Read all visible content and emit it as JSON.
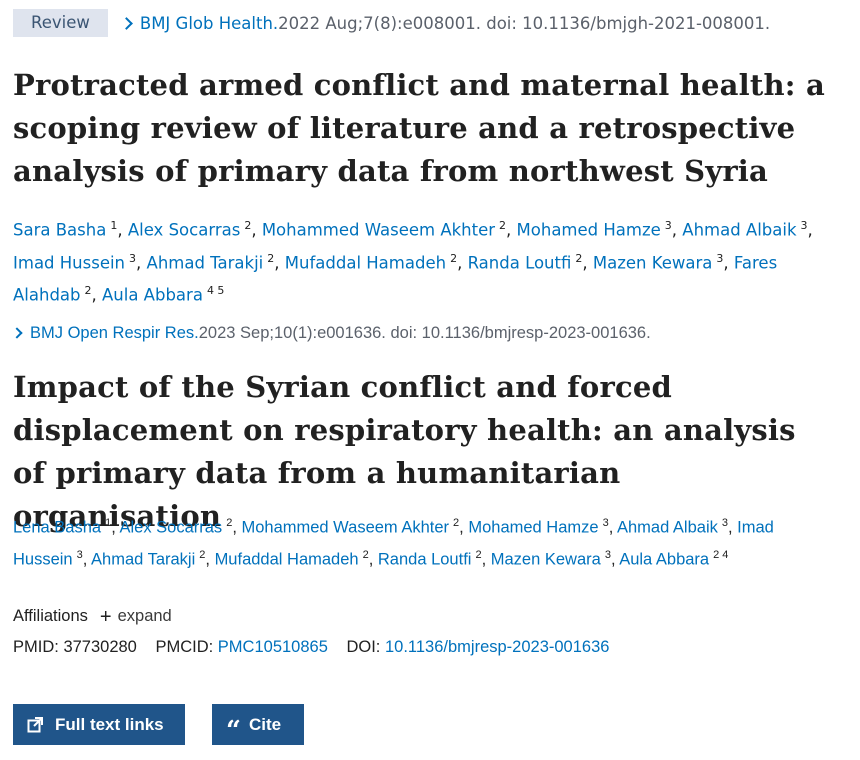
{
  "ref1": {
    "badge": "Review",
    "journal": "BMJ Glob Health.",
    "meta": " 2022 Aug;7(8):e008001. doi: 10.1136/bmjgh-2021-008001.",
    "title": "Protracted armed conflict and maternal health: a scoping review of literature and a retrospective analysis of primary data from northwest Syria",
    "authors": [
      {
        "name": "Sara Basha",
        "sup": "1"
      },
      {
        "name": "Alex Socarras",
        "sup": "2"
      },
      {
        "name": "Mohammed Waseem Akhter",
        "sup": "2"
      },
      {
        "name": "Mohamed Hamze",
        "sup": "3"
      },
      {
        "name": "Ahmad Albaik",
        "sup": "3"
      },
      {
        "name": "Imad Hussein",
        "sup": "3"
      },
      {
        "name": "Ahmad Tarakji",
        "sup": "2"
      },
      {
        "name": "Mufaddal Hamadeh",
        "sup": "2"
      },
      {
        "name": "Randa Loutfi",
        "sup": "2"
      },
      {
        "name": "Mazen Kewara",
        "sup": "3"
      },
      {
        "name": "Fares Alahdab",
        "sup": "2"
      },
      {
        "name": "Aula Abbara",
        "sup": "4 5"
      }
    ]
  },
  "ref2": {
    "journal": "BMJ Open Respir Res.",
    "meta": " 2023 Sep;10(1):e001636. doi: 10.1136/bmjresp-2023-001636.",
    "title": "Impact of the Syrian conflict and forced displacement on respiratory health: an analysis of primary data from a humanitarian organisation",
    "authors": [
      {
        "name": "Lena Basha",
        "sup": "1"
      },
      {
        "name": "Alex Socarras",
        "sup": "2"
      },
      {
        "name": "Mohammed Waseem Akhter",
        "sup": "2"
      },
      {
        "name": "Mohamed Hamze",
        "sup": "3"
      },
      {
        "name": "Ahmad Albaik",
        "sup": "3"
      },
      {
        "name": "Imad Hussein",
        "sup": "3"
      },
      {
        "name": "Ahmad Tarakji",
        "sup": "2"
      },
      {
        "name": "Mufaddal Hamadeh",
        "sup": "2"
      },
      {
        "name": "Randa Loutfi",
        "sup": "2"
      },
      {
        "name": "Mazen Kewara",
        "sup": "3"
      },
      {
        "name": "Aula Abbara",
        "sup": "2 4"
      }
    ],
    "affiliations_label": "Affiliations",
    "expand_label": "expand",
    "pmid_label": "PMID:",
    "pmid": "37730280",
    "pmcid_label": "PMCID:",
    "pmcid": "PMC10510865",
    "doi_label": "DOI:",
    "doi": "10.1136/bmjresp-2023-001636"
  },
  "buttons": {
    "full_text": "Full text links",
    "cite": "Cite"
  },
  "icons": {
    "full_text": "external-link-icon",
    "cite": "quote-icon"
  },
  "colors": {
    "link": "#0071bc",
    "button": "#20558a",
    "badge_bg": "#dfe4ee"
  }
}
